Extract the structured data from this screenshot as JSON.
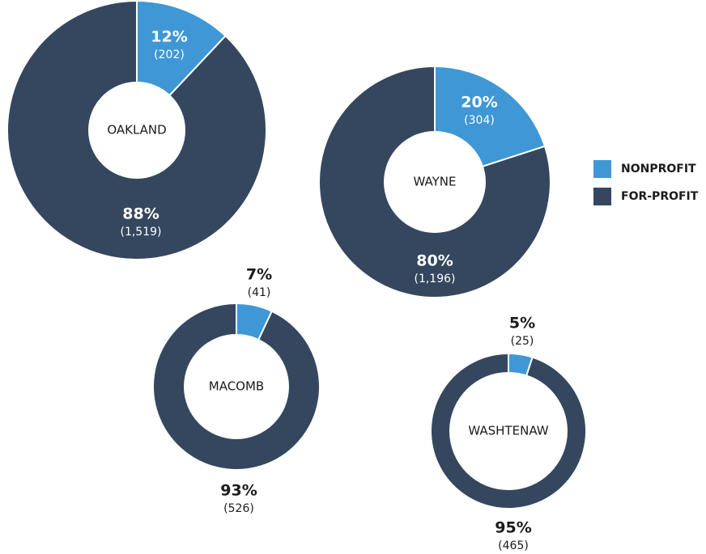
{
  "legend": {
    "categories": [
      "NONPROFIT",
      "FOR-PROFIT"
    ],
    "colors": [
      "#3f97d6",
      "#34475e"
    ]
  },
  "chart_data": [
    {
      "type": "pie",
      "donut": true,
      "name": "OAKLAND",
      "values": [
        12,
        88
      ],
      "value_labels": [
        "12%",
        "88%"
      ],
      "counts": [
        202,
        1519
      ],
      "count_labels": [
        "(202)",
        "(1,519)"
      ]
    },
    {
      "type": "pie",
      "donut": true,
      "name": "WAYNE",
      "values": [
        20,
        80
      ],
      "value_labels": [
        "20%",
        "80%"
      ],
      "counts": [
        304,
        1196
      ],
      "count_labels": [
        "(304)",
        "(1,196)"
      ]
    },
    {
      "type": "pie",
      "donut": true,
      "name": "MACOMB",
      "values": [
        7,
        93
      ],
      "value_labels": [
        "7%",
        "93%"
      ],
      "counts": [
        41,
        526
      ],
      "count_labels": [
        "(41)",
        "(526)"
      ]
    },
    {
      "type": "pie",
      "donut": true,
      "name": "WASHTENAW",
      "values": [
        5,
        95
      ],
      "value_labels": [
        "5%",
        "95%"
      ],
      "counts": [
        25,
        465
      ],
      "count_labels": [
        "(25)",
        "(465)"
      ]
    }
  ]
}
